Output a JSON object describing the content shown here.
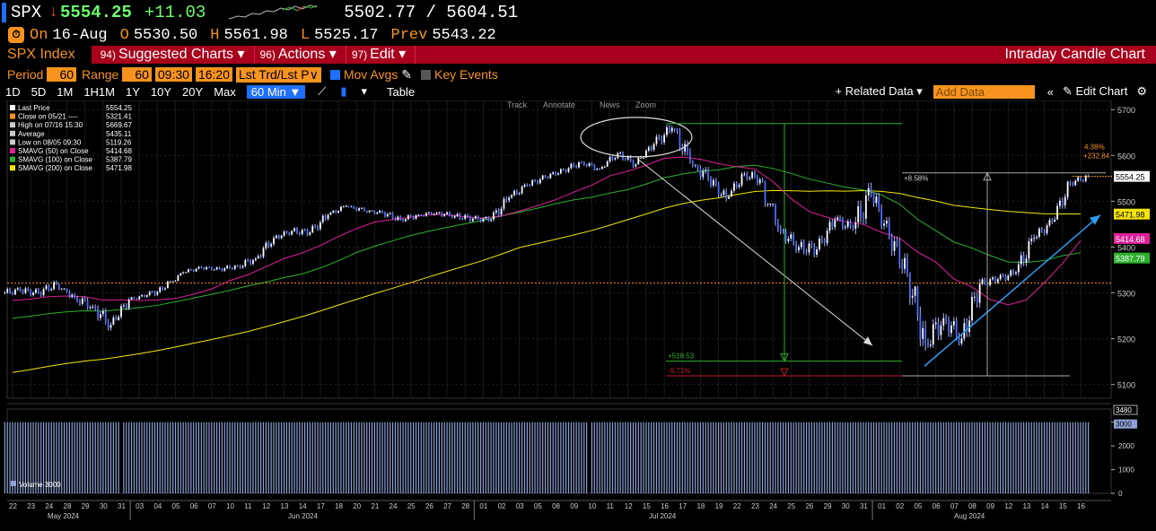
{
  "header": {
    "ticker": "SPX",
    "last": "5554.25",
    "change": "+11.03",
    "range": "5502.77 / 5604.51",
    "on_label": "On",
    "date": "16-Aug",
    "open_label": "O",
    "open": "5530.50",
    "high_label": "H",
    "high": "5561.98",
    "low_label": "L",
    "low": "5525.17",
    "prev_label": "Prev",
    "prev": "5543.22"
  },
  "menu": {
    "security": "SPX Index",
    "suggested": {
      "num": "94)",
      "label": "Suggested Charts ▾"
    },
    "actions": {
      "num": "96)",
      "label": "Actions ▾"
    },
    "edit": {
      "num": "97)",
      "label": "Edit ▾"
    },
    "title": "Intraday Candle Chart"
  },
  "settings": {
    "period_label": "Period",
    "period": "60",
    "range_label": "Range",
    "range": "60",
    "time_from": "09:30",
    "time_to": "16:20",
    "lst_trd": "Lst Trd/Lst P∨",
    "mov_avgs": "Mov Avgs",
    "key_events": "Key Events"
  },
  "toolbar": {
    "ranges": [
      "1D",
      "5D",
      "1M",
      "1H1M",
      "1Y",
      "10Y",
      "20Y",
      "Max"
    ],
    "interval": "60 Min ▼",
    "table": "Table",
    "related": "+ Related Data ▾",
    "add_data": "Add Data",
    "edit_chart": "Edit Chart",
    "tools": [
      "Track",
      "Annotate",
      "News",
      "Zoom"
    ]
  },
  "legend": [
    {
      "label": "Last Price",
      "value": "5554.25",
      "color": "#ffffff"
    },
    {
      "label": "Close on 05/21 ----",
      "value": "5321.41",
      "color": "#f7931e"
    },
    {
      "label": "High on 07/16 15:30",
      "value": "5669.67",
      "color": "#cccccc"
    },
    {
      "label": "Average",
      "value": "5435.11",
      "color": "#cccccc"
    },
    {
      "label": "Low on 08/05 09:30",
      "value": "5119.26",
      "color": "#cccccc"
    },
    {
      "label": "SMAVG (50)  on Close",
      "value": "5414.68",
      "color": "#e0209a"
    },
    {
      "label": "SMAVG (100)  on Close",
      "value": "5387.79",
      "color": "#2db12d"
    },
    {
      "label": "SMAVG (200)  on Close",
      "value": "5471.98",
      "color": "#f5e50a"
    }
  ],
  "chart_data": {
    "type": "candlestick",
    "interval": "60 Min",
    "ylim": [
      5070,
      5720
    ],
    "y_ticks": [
      5100,
      5200,
      5300,
      5400,
      5500,
      5600,
      5700
    ],
    "volume_ticks": [
      0,
      1000,
      2000,
      3000
    ],
    "volume_tags": [
      "3480",
      "3000"
    ],
    "volume_label": "Volume 3000",
    "volume_level": 3000,
    "x_days": [
      "22",
      "23",
      "24",
      "28",
      "29",
      "30",
      "31",
      "03",
      "04",
      "05",
      "06",
      "07",
      "10",
      "11",
      "12",
      "13",
      "14",
      "17",
      "18",
      "20",
      "21",
      "24",
      "25",
      "26",
      "27",
      "28",
      "01",
      "02",
      "03",
      "05",
      "08",
      "09",
      "10",
      "11",
      "12",
      "15",
      "16",
      "17",
      "18",
      "19",
      "22",
      "23",
      "24",
      "25",
      "26",
      "29",
      "30",
      "31",
      "01",
      "02",
      "05",
      "06",
      "07",
      "08",
      "09",
      "12",
      "13",
      "14",
      "15",
      "16"
    ],
    "months": [
      "May 2024",
      "Jun 2024",
      "Jul 2024",
      "Aug 2024"
    ],
    "daily_close": [
      5305,
      5300,
      5320,
      5290,
      5270,
      5230,
      5285,
      5295,
      5310,
      5345,
      5355,
      5352,
      5358,
      5375,
      5420,
      5435,
      5432,
      5470,
      5490,
      5480,
      5475,
      5460,
      5470,
      5475,
      5468,
      5462,
      5460,
      5508,
      5535,
      5553,
      5568,
      5585,
      5570,
      5605,
      5580,
      5625,
      5660,
      5590,
      5550,
      5505,
      5560,
      5545,
      5435,
      5400,
      5395,
      5460,
      5440,
      5520,
      5425,
      5345,
      5190,
      5245,
      5200,
      5320,
      5330,
      5345,
      5420,
      5455,
      5540,
      5554
    ],
    "daily_high": [
      5335,
      5325,
      5330,
      5310,
      5295,
      5275,
      5300,
      5305,
      5325,
      5350,
      5362,
      5358,
      5365,
      5390,
      5428,
      5440,
      5447,
      5480,
      5495,
      5490,
      5480,
      5478,
      5480,
      5482,
      5478,
      5475,
      5470,
      5512,
      5540,
      5558,
      5575,
      5590,
      5595,
      5615,
      5610,
      5640,
      5669.67,
      5660,
      5580,
      5560,
      5570,
      5567,
      5495,
      5450,
      5445,
      5470,
      5470,
      5560,
      5520,
      5430,
      5315,
      5315,
      5295,
      5330,
      5345,
      5355,
      5430,
      5465,
      5545,
      5561.98
    ],
    "daily_low": [
      5295,
      5285,
      5285,
      5270,
      5240,
      5200,
      5240,
      5285,
      5290,
      5325,
      5342,
      5338,
      5340,
      5350,
      5375,
      5410,
      5410,
      5430,
      5470,
      5465,
      5455,
      5445,
      5450,
      5460,
      5450,
      5440,
      5440,
      5450,
      5500,
      5525,
      5548,
      5555,
      5565,
      5575,
      5570,
      5595,
      5605,
      5560,
      5500,
      5495,
      5510,
      5510,
      5400,
      5380,
      5370,
      5390,
      5410,
      5410,
      5415,
      5300,
      5119.26,
      5180,
      5185,
      5195,
      5300,
      5310,
      5330,
      5410,
      5460,
      5525.17
    ],
    "sma50_last": 5414.68,
    "sma100_last": 5387.79,
    "sma200_last": 5471.98,
    "ref_close_0521": 5321.41,
    "high_0716": 5669.67,
    "low_0805": 5119.26,
    "annotations": {
      "up1_pct": "+8.58%",
      "up2_pct": "4.38%",
      "up2_abs": "+232.84",
      "down_abs": "+518.53",
      "down_pct": "-9.71%"
    },
    "price_tags": [
      "5554.25",
      "5471.98",
      "5414.68",
      "5387.79"
    ]
  }
}
